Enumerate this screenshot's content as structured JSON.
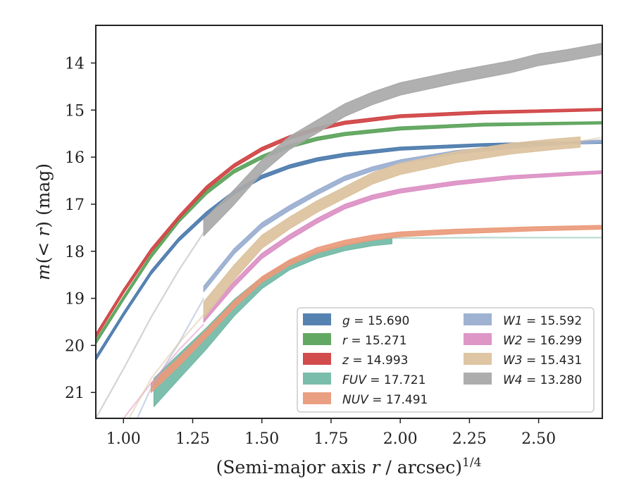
{
  "chart_data": {
    "type": "line",
    "xlabel_main": "(Semi-major axis ",
    "xlabel_var": "r",
    "xlabel_tail": " / arcsec)",
    "xlabel_sup": "1/4",
    "ylabel_m": "m",
    "ylabel_paren": "(< ",
    "ylabel_r": "r",
    "ylabel_tail": ") (mag)",
    "xlim": [
      0.9,
      2.73
    ],
    "ylim": [
      21.55,
      13.2
    ],
    "y_inverted": true,
    "x_ticks": [
      "1.00",
      "1.25",
      "1.50",
      "1.75",
      "2.00",
      "2.25",
      "2.50"
    ],
    "x_tick_values": [
      1.0,
      1.25,
      1.5,
      1.75,
      2.0,
      2.25,
      2.5
    ],
    "y_ticks": [
      "14",
      "15",
      "16",
      "17",
      "18",
      "19",
      "20",
      "21"
    ],
    "y_tick_values": [
      14,
      15,
      16,
      17,
      18,
      19,
      20,
      21
    ],
    "grid": false,
    "legend_position": "lower-right",
    "series": [
      {
        "band": "g",
        "mag": "15.690",
        "color": "#4c7bad",
        "legend_col": 0,
        "faint": [],
        "bold": [
          [
            0.9,
            20.28
          ],
          [
            1.0,
            19.34
          ],
          [
            1.1,
            18.45
          ],
          [
            1.2,
            17.75
          ],
          [
            1.3,
            17.2
          ],
          [
            1.4,
            16.75
          ],
          [
            1.5,
            16.42
          ],
          [
            1.6,
            16.2
          ],
          [
            1.7,
            16.05
          ],
          [
            1.8,
            15.95
          ],
          [
            2.0,
            15.82
          ],
          [
            2.3,
            15.74
          ],
          [
            2.73,
            15.68
          ]
        ],
        "width": [
          [
            0.9,
            0.09
          ],
          [
            2.73,
            0.05
          ]
        ]
      },
      {
        "band": "r",
        "mag": "15.271",
        "color": "#5ba35a",
        "legend_col": 0,
        "faint": [],
        "bold": [
          [
            0.9,
            19.93
          ],
          [
            1.0,
            19.0
          ],
          [
            1.1,
            18.1
          ],
          [
            1.2,
            17.35
          ],
          [
            1.3,
            16.75
          ],
          [
            1.4,
            16.3
          ],
          [
            1.5,
            16.0
          ],
          [
            1.6,
            15.77
          ],
          [
            1.7,
            15.61
          ],
          [
            1.8,
            15.51
          ],
          [
            2.0,
            15.39
          ],
          [
            2.3,
            15.31
          ],
          [
            2.73,
            15.27
          ]
        ],
        "width": [
          [
            0.9,
            0.09
          ],
          [
            2.73,
            0.05
          ]
        ]
      },
      {
        "band": "z",
        "mag": "14.993",
        "color": "#d04243",
        "legend_col": 0,
        "faint": [],
        "bold": [
          [
            0.9,
            19.8
          ],
          [
            1.0,
            18.85
          ],
          [
            1.1,
            17.98
          ],
          [
            1.2,
            17.28
          ],
          [
            1.3,
            16.65
          ],
          [
            1.4,
            16.18
          ],
          [
            1.5,
            15.83
          ],
          [
            1.6,
            15.58
          ],
          [
            1.7,
            15.4
          ],
          [
            1.8,
            15.27
          ],
          [
            2.0,
            15.13
          ],
          [
            2.3,
            15.05
          ],
          [
            2.73,
            14.99
          ]
        ],
        "width": [
          [
            0.9,
            0.09
          ],
          [
            2.73,
            0.05
          ]
        ]
      },
      {
        "band": "FUV",
        "mag": "17.721",
        "color": "#72b9a5",
        "legend_col": 0,
        "faint": [
          [
            1.97,
            17.72
          ],
          [
            2.3,
            17.71
          ],
          [
            2.73,
            17.71
          ]
        ],
        "bold": [
          [
            1.11,
            21.0
          ],
          [
            1.2,
            20.45
          ],
          [
            1.3,
            19.85
          ],
          [
            1.4,
            19.2
          ],
          [
            1.5,
            18.67
          ],
          [
            1.6,
            18.3
          ],
          [
            1.7,
            18.08
          ],
          [
            1.8,
            17.92
          ],
          [
            1.9,
            17.82
          ],
          [
            1.97,
            17.78
          ]
        ],
        "width": [
          [
            1.11,
            0.6
          ],
          [
            1.3,
            0.45
          ],
          [
            1.5,
            0.25
          ],
          [
            1.7,
            0.14
          ],
          [
            1.97,
            0.12
          ]
        ]
      },
      {
        "band": "NUV",
        "mag": "17.491",
        "color": "#ea9a7b",
        "legend_col": 0,
        "faint": [],
        "bold": [
          [
            1.1,
            20.9
          ],
          [
            1.2,
            20.35
          ],
          [
            1.3,
            19.75
          ],
          [
            1.4,
            19.13
          ],
          [
            1.5,
            18.6
          ],
          [
            1.6,
            18.24
          ],
          [
            1.7,
            17.98
          ],
          [
            1.8,
            17.82
          ],
          [
            1.9,
            17.71
          ],
          [
            2.0,
            17.64
          ],
          [
            2.2,
            17.58
          ],
          [
            2.5,
            17.52
          ],
          [
            2.73,
            17.49
          ]
        ],
        "width": [
          [
            1.1,
            0.2
          ],
          [
            1.5,
            0.12
          ],
          [
            2.73,
            0.08
          ]
        ]
      },
      {
        "band": "W1",
        "mag": "15.592",
        "color": "#9aaed0",
        "legend_col": 1,
        "faint": [
          [
            1.05,
            21.55
          ],
          [
            1.1,
            20.9
          ],
          [
            1.2,
            19.95
          ],
          [
            1.29,
            19.0
          ]
        ],
        "bold": [
          [
            1.29,
            18.8
          ],
          [
            1.4,
            18.0
          ],
          [
            1.5,
            17.45
          ],
          [
            1.6,
            17.08
          ],
          [
            1.7,
            16.75
          ],
          [
            1.8,
            16.45
          ],
          [
            1.9,
            16.25
          ],
          [
            2.0,
            16.1
          ],
          [
            2.2,
            15.9
          ],
          [
            2.4,
            15.78
          ],
          [
            2.6,
            15.7
          ],
          [
            2.73,
            15.66
          ]
        ],
        "width": [
          [
            1.29,
            0.12
          ],
          [
            2.73,
            0.05
          ]
        ]
      },
      {
        "band": "W2",
        "mag": "16.299",
        "color": "#dc90c4",
        "legend_col": 1,
        "faint": [
          [
            1.0,
            21.55
          ],
          [
            1.1,
            20.8
          ],
          [
            1.2,
            20.1
          ],
          [
            1.29,
            19.55
          ]
        ],
        "bold": [
          [
            1.29,
            19.45
          ],
          [
            1.4,
            18.7
          ],
          [
            1.5,
            18.1
          ],
          [
            1.6,
            17.7
          ],
          [
            1.7,
            17.35
          ],
          [
            1.8,
            17.05
          ],
          [
            1.9,
            16.85
          ],
          [
            2.0,
            16.72
          ],
          [
            2.2,
            16.55
          ],
          [
            2.4,
            16.43
          ],
          [
            2.6,
            16.36
          ],
          [
            2.73,
            16.32
          ]
        ],
        "width": [
          [
            1.29,
            0.12
          ],
          [
            2.73,
            0.06
          ]
        ]
      },
      {
        "band": "W3",
        "mag": "15.431",
        "color": "#dcc29e",
        "legend_col": 1,
        "faint": [
          [
            1.02,
            21.55
          ],
          [
            1.1,
            20.7
          ],
          [
            1.2,
            19.95
          ],
          [
            1.29,
            19.35
          ]
        ],
        "bold": [
          [
            1.29,
            19.25
          ],
          [
            1.4,
            18.45
          ],
          [
            1.5,
            17.8
          ],
          [
            1.6,
            17.4
          ],
          [
            1.7,
            17.05
          ],
          [
            1.8,
            16.75
          ],
          [
            1.9,
            16.45
          ],
          [
            2.0,
            16.25
          ],
          [
            2.2,
            16.0
          ],
          [
            2.4,
            15.82
          ],
          [
            2.55,
            15.73
          ],
          [
            2.65,
            15.68
          ]
        ],
        "width": [
          [
            1.29,
            0.35
          ],
          [
            1.6,
            0.25
          ],
          [
            2.65,
            0.22
          ]
        ],
        "faint_tail": [
          [
            2.65,
            15.66
          ],
          [
            2.73,
            15.58
          ]
        ]
      },
      {
        "band": "W4",
        "mag": "13.280",
        "color": "#a9a9a9",
        "legend_col": 1,
        "faint": [
          [
            0.9,
            21.55
          ],
          [
            1.0,
            20.5
          ],
          [
            1.1,
            19.4
          ],
          [
            1.2,
            18.4
          ],
          [
            1.29,
            17.6
          ]
        ],
        "bold": [
          [
            1.29,
            17.5
          ],
          [
            1.4,
            16.85
          ],
          [
            1.5,
            16.2
          ],
          [
            1.6,
            15.7
          ],
          [
            1.7,
            15.35
          ],
          [
            1.8,
            15.0
          ],
          [
            1.9,
            14.75
          ],
          [
            2.0,
            14.55
          ],
          [
            2.2,
            14.3
          ],
          [
            2.4,
            14.08
          ],
          [
            2.5,
            13.93
          ],
          [
            2.6,
            13.84
          ],
          [
            2.73,
            13.7
          ]
        ],
        "width": [
          [
            1.29,
            0.35
          ],
          [
            1.5,
            0.28
          ],
          [
            2.73,
            0.24
          ]
        ]
      }
    ]
  }
}
